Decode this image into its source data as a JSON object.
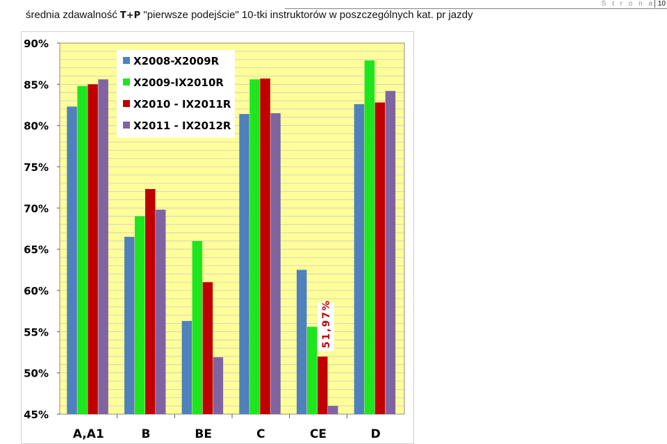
{
  "header": {
    "running_text": "S t r o n a",
    "page_number": "10"
  },
  "caption": {
    "prefix": "średnia zdawalność ",
    "bold": "T+P",
    "suffix": " \"pierwsze podejście\" 10-tki instruktorów w poszczególnych kat. pr jazdy"
  },
  "colors": {
    "plot_background": "#ffff99",
    "gridline": "#c8c8c8",
    "series": [
      "#4f81bd",
      "#1ee61e",
      "#c00000",
      "#8064a2"
    ],
    "annotation": "#c00000"
  },
  "chart_data": {
    "type": "bar",
    "categories": [
      "A,A1",
      "B",
      "BE",
      "C",
      "CE",
      "D"
    ],
    "series": [
      {
        "name": "X2008-X2009R",
        "values": [
          82.3,
          66.5,
          56.3,
          81.4,
          62.5,
          82.6
        ]
      },
      {
        "name": "X2009-IX2010R",
        "values": [
          84.8,
          69.0,
          66.0,
          85.6,
          55.6,
          87.9
        ]
      },
      {
        "name": "X2010 - IX2011R",
        "values": [
          85.0,
          72.3,
          61.0,
          85.7,
          51.97,
          82.8
        ]
      },
      {
        "name": "X2011 - IX2012R",
        "values": [
          85.6,
          69.8,
          51.9,
          81.5,
          46.0,
          84.2
        ]
      }
    ],
    "y_ticks": [
      "45%",
      "50%",
      "55%",
      "60%",
      "65%",
      "70%",
      "75%",
      "80%",
      "85%",
      "90%"
    ],
    "ylim": [
      45,
      90
    ],
    "grid": true,
    "legend_position": "top-left",
    "annotation": {
      "text": "51,97%",
      "category": "CE",
      "series_index": 2
    }
  }
}
